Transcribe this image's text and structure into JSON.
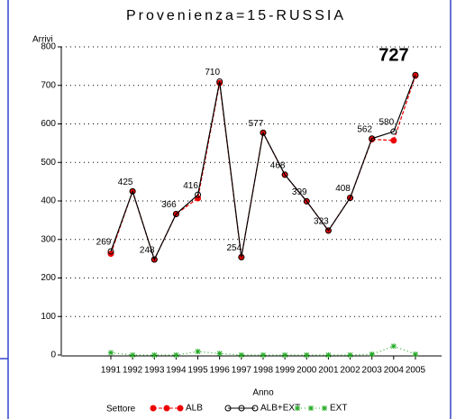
{
  "chart_data": {
    "type": "line",
    "title": "Provenienza=15-RUSSIA",
    "y_label": "Arrivi",
    "x_label": "Anno",
    "legend_title": "Settore",
    "categories": [
      "1991",
      "1992",
      "1993",
      "1994",
      "1995",
      "1996",
      "1997",
      "1998",
      "1999",
      "2000",
      "2001",
      "2002",
      "2003",
      "2004",
      "2005"
    ],
    "series": [
      {
        "name": "ALB",
        "color": "#ee0000",
        "values": [
          263,
          425,
          248,
          366,
          407,
          706,
          254,
          577,
          468,
          399,
          323,
          408,
          560,
          557,
          725
        ]
      },
      {
        "name": "ALB+EXT",
        "color": "#000000",
        "values": [
          269,
          425,
          248,
          366,
          416,
          710,
          254,
          577,
          468,
          399,
          323,
          408,
          562,
          580,
          727
        ]
      },
      {
        "name": "EXT",
        "color": "#22aa22",
        "values": [
          6,
          0,
          0,
          0,
          9,
          4,
          0,
          0,
          0,
          0,
          0,
          0,
          2,
          23,
          2
        ]
      }
    ],
    "labeled_series": 1,
    "ylim": [
      0,
      800
    ],
    "yticks": [
      0,
      100,
      200,
      300,
      400,
      500,
      600,
      700,
      800
    ],
    "grid": true
  }
}
